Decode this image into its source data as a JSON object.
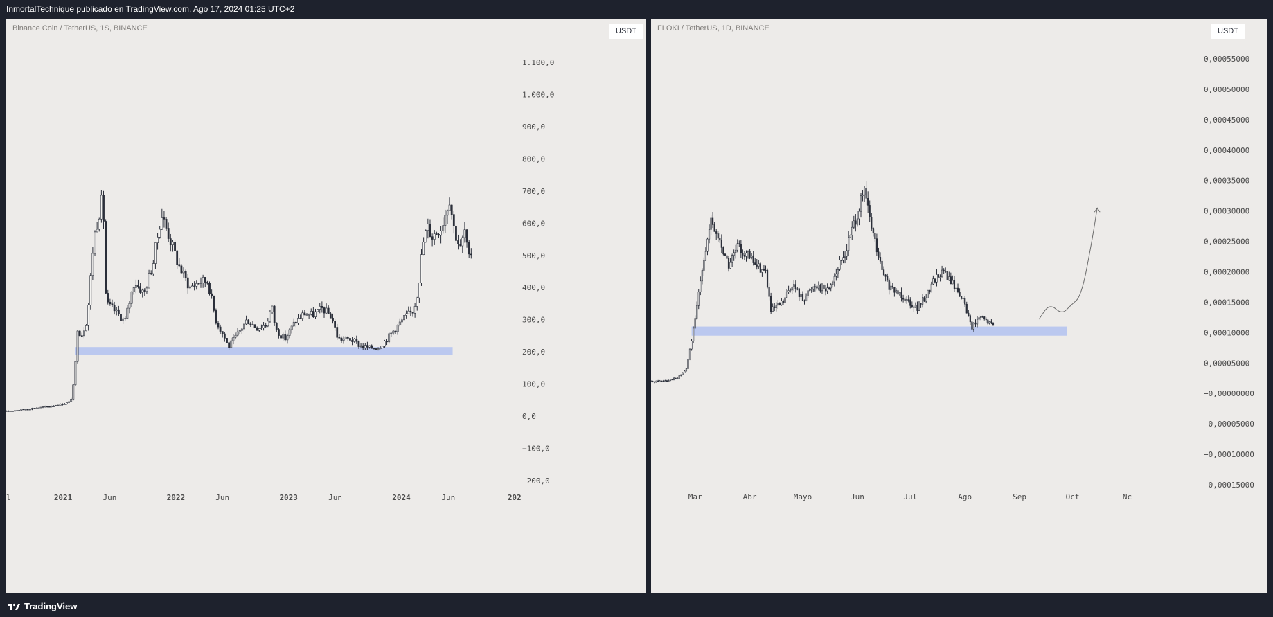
{
  "header": {
    "text": "InmortalTechnique publicado en TradingView.com, Ago 17, 2024 01:25 UTC+2"
  },
  "footer": {
    "brand": "TradingView"
  },
  "colors": {
    "background": "#1e222d",
    "pane": "#edebe9",
    "candle": "#2a2e39",
    "zone": "#b5c4f0",
    "drawing": "#6b6b6b"
  },
  "chart_data": [
    {
      "type": "candlestick",
      "title": "Binance Coin / TetherUS, 1S, BINANCE",
      "currency": "USDT",
      "scale": "linear",
      "ylim": [
        -250,
        1150
      ],
      "y_ticks": [
        "1.100,0",
        "1.000,0",
        "900,0",
        "800,0",
        "700,0",
        "600,0",
        "500,0",
        "400,0",
        "300,0",
        "200,0",
        "100,0",
        "0,0",
        "−100,0",
        "−200,0"
      ],
      "y_tick_values": [
        1100,
        1000,
        900,
        800,
        700,
        600,
        500,
        400,
        300,
        200,
        100,
        0,
        -100,
        -200
      ],
      "x_ticks": [
        "ul",
        "2021",
        "Jun",
        "2022",
        "Jun",
        "2023",
        "Jun",
        "2024",
        "Jun",
        "202"
      ],
      "x_tick_bold": [
        false,
        true,
        false,
        true,
        false,
        true,
        false,
        true,
        false,
        true
      ],
      "x_tick_dates": [
        "2020-07-01",
        "2021-01-01",
        "2021-06-01",
        "2022-01-01",
        "2022-06-01",
        "2023-01-01",
        "2023-06-01",
        "2024-01-01",
        "2024-06-01",
        "2025-01-01"
      ],
      "xlim": [
        "2020-07-01",
        "2025-01-15"
      ],
      "support_zone": {
        "from": "2021-02-08",
        "to": "2024-06-15",
        "low": 190,
        "high": 215
      },
      "series": [
        {
          "date": "2020-07-01",
          "close": 15
        },
        {
          "date": "2020-08-15",
          "close": 20
        },
        {
          "date": "2020-10-01",
          "close": 25
        },
        {
          "date": "2020-11-15",
          "close": 30
        },
        {
          "date": "2021-01-01",
          "close": 38
        },
        {
          "date": "2021-01-25",
          "close": 45
        },
        {
          "date": "2021-02-08",
          "close": 120
        },
        {
          "date": "2021-02-15",
          "close": 280
        },
        {
          "date": "2021-03-01",
          "close": 250
        },
        {
          "date": "2021-03-20",
          "close": 300
        },
        {
          "date": "2021-04-10",
          "close": 550
        },
        {
          "date": "2021-05-01",
          "close": 650
        },
        {
          "date": "2021-05-10",
          "close": 680
        },
        {
          "date": "2021-05-20",
          "close": 350
        },
        {
          "date": "2021-06-15",
          "close": 330
        },
        {
          "date": "2021-07-20",
          "close": 295
        },
        {
          "date": "2021-08-20",
          "close": 420
        },
        {
          "date": "2021-09-20",
          "close": 380
        },
        {
          "date": "2021-10-20",
          "close": 480
        },
        {
          "date": "2021-11-15",
          "close": 630
        },
        {
          "date": "2021-12-10",
          "close": 560
        },
        {
          "date": "2022-01-10",
          "close": 470
        },
        {
          "date": "2022-02-15",
          "close": 400
        },
        {
          "date": "2022-03-20",
          "close": 420
        },
        {
          "date": "2022-04-15",
          "close": 420
        },
        {
          "date": "2022-05-10",
          "close": 300
        },
        {
          "date": "2022-06-10",
          "close": 240
        },
        {
          "date": "2022-06-20",
          "close": 215
        },
        {
          "date": "2022-07-20",
          "close": 255
        },
        {
          "date": "2022-08-20",
          "close": 300
        },
        {
          "date": "2022-09-20",
          "close": 275
        },
        {
          "date": "2022-10-20",
          "close": 285
        },
        {
          "date": "2022-11-08",
          "close": 340
        },
        {
          "date": "2022-11-20",
          "close": 270
        },
        {
          "date": "2022-12-20",
          "close": 240
        },
        {
          "date": "2023-01-20",
          "close": 290
        },
        {
          "date": "2023-02-20",
          "close": 320
        },
        {
          "date": "2023-03-20",
          "close": 315
        },
        {
          "date": "2023-04-20",
          "close": 335
        },
        {
          "date": "2023-05-20",
          "close": 310
        },
        {
          "date": "2023-06-10",
          "close": 240
        },
        {
          "date": "2023-07-20",
          "close": 240
        },
        {
          "date": "2023-08-20",
          "close": 220
        },
        {
          "date": "2023-09-20",
          "close": 212
        },
        {
          "date": "2023-10-20",
          "close": 215
        },
        {
          "date": "2023-11-15",
          "close": 240
        },
        {
          "date": "2023-12-10",
          "close": 270
        },
        {
          "date": "2024-01-10",
          "close": 305
        },
        {
          "date": "2024-02-10",
          "close": 330
        },
        {
          "date": "2024-02-25",
          "close": 400
        },
        {
          "date": "2024-03-10",
          "close": 530
        },
        {
          "date": "2024-03-25",
          "close": 590
        },
        {
          "date": "2024-04-10",
          "close": 560
        },
        {
          "date": "2024-05-10",
          "close": 590
        },
        {
          "date": "2024-06-05",
          "close": 680
        },
        {
          "date": "2024-06-20",
          "close": 580
        },
        {
          "date": "2024-07-10",
          "close": 520
        },
        {
          "date": "2024-07-25",
          "close": 580
        },
        {
          "date": "2024-08-05",
          "close": 480
        },
        {
          "date": "2024-08-17",
          "close": 520
        }
      ]
    },
    {
      "type": "candlestick",
      "title": "FLOKI / TetherUS, 1D, BINANCE",
      "currency": "USDT",
      "scale": "linear",
      "ylim": [
        -0.00016,
        0.0006
      ],
      "y_ticks": [
        "0,00055000",
        "0,00050000",
        "0,00045000",
        "0,00040000",
        "0,00035000",
        "0,00030000",
        "0,00025000",
        "0,00020000",
        "0,00015000",
        "0,00010000",
        "0,00005000",
        "−0,00000000",
        "−0,00005000",
        "−0,00010000",
        "−0,00015000"
      ],
      "y_tick_values": [
        0.00055,
        0.0005,
        0.00045,
        0.0004,
        0.00035,
        0.0003,
        0.00025,
        0.0002,
        0.00015,
        0.0001,
        5e-05,
        0,
        -5e-05,
        -0.0001,
        -0.00015
      ],
      "x_ticks": [
        "Mar",
        "Abr",
        "Mayo",
        "Jun",
        "Jul",
        "Ago",
        "Sep",
        "Oct",
        "Nc"
      ],
      "x_tick_dates": [
        "2024-03-01",
        "2024-04-01",
        "2024-05-01",
        "2024-06-01",
        "2024-07-01",
        "2024-08-01",
        "2024-09-01",
        "2024-10-01",
        "2024-11-01"
      ],
      "xlim": [
        "2024-02-05",
        "2024-11-02"
      ],
      "support_zone": {
        "from": "2024-02-28",
        "to": "2024-09-28",
        "low": 9.5e-05,
        "high": 0.00011
      },
      "projection": [
        {
          "date": "2024-09-12",
          "value": 0.000122
        },
        {
          "date": "2024-09-18",
          "value": 0.000148
        },
        {
          "date": "2024-09-25",
          "value": 0.00013
        },
        {
          "date": "2024-09-30",
          "value": 0.000145
        },
        {
          "date": "2024-10-06",
          "value": 0.00016
        },
        {
          "date": "2024-10-12",
          "value": 0.00025
        },
        {
          "date": "2024-10-15",
          "value": 0.000305
        }
      ],
      "series": [
        {
          "date": "2024-02-05",
          "close": 1.9e-05
        },
        {
          "date": "2024-02-12",
          "close": 2.1e-05
        },
        {
          "date": "2024-02-20",
          "close": 2.5e-05
        },
        {
          "date": "2024-02-25",
          "close": 4e-05
        },
        {
          "date": "2024-03-01",
          "close": 0.00012
        },
        {
          "date": "2024-03-05",
          "close": 0.00021
        },
        {
          "date": "2024-03-10",
          "close": 0.00028
        },
        {
          "date": "2024-03-15",
          "close": 0.00025
        },
        {
          "date": "2024-03-20",
          "close": 0.00021
        },
        {
          "date": "2024-03-25",
          "close": 0.00024
        },
        {
          "date": "2024-03-30",
          "close": 0.00023
        },
        {
          "date": "2024-04-05",
          "close": 0.00021
        },
        {
          "date": "2024-04-10",
          "close": 0.0002
        },
        {
          "date": "2024-04-13",
          "close": 0.000135
        },
        {
          "date": "2024-04-20",
          "close": 0.00015
        },
        {
          "date": "2024-04-25",
          "close": 0.00018
        },
        {
          "date": "2024-05-01",
          "close": 0.000155
        },
        {
          "date": "2024-05-08",
          "close": 0.00018
        },
        {
          "date": "2024-05-15",
          "close": 0.00017
        },
        {
          "date": "2024-05-20",
          "close": 0.0002
        },
        {
          "date": "2024-05-25",
          "close": 0.00023
        },
        {
          "date": "2024-05-30",
          "close": 0.00028
        },
        {
          "date": "2024-06-05",
          "close": 0.00033
        },
        {
          "date": "2024-06-10",
          "close": 0.00026
        },
        {
          "date": "2024-06-15",
          "close": 0.0002
        },
        {
          "date": "2024-06-20",
          "close": 0.00017
        },
        {
          "date": "2024-06-25",
          "close": 0.000165
        },
        {
          "date": "2024-07-01",
          "close": 0.00015
        },
        {
          "date": "2024-07-05",
          "close": 0.00014
        },
        {
          "date": "2024-07-10",
          "close": 0.00016
        },
        {
          "date": "2024-07-15",
          "close": 0.00019
        },
        {
          "date": "2024-07-20",
          "close": 0.0002
        },
        {
          "date": "2024-07-25",
          "close": 0.00018
        },
        {
          "date": "2024-07-30",
          "close": 0.00016
        },
        {
          "date": "2024-08-05",
          "close": 0.00011
        },
        {
          "date": "2024-08-10",
          "close": 0.000125
        },
        {
          "date": "2024-08-15",
          "close": 0.000115
        },
        {
          "date": "2024-08-17",
          "close": 0.000112
        }
      ]
    }
  ]
}
